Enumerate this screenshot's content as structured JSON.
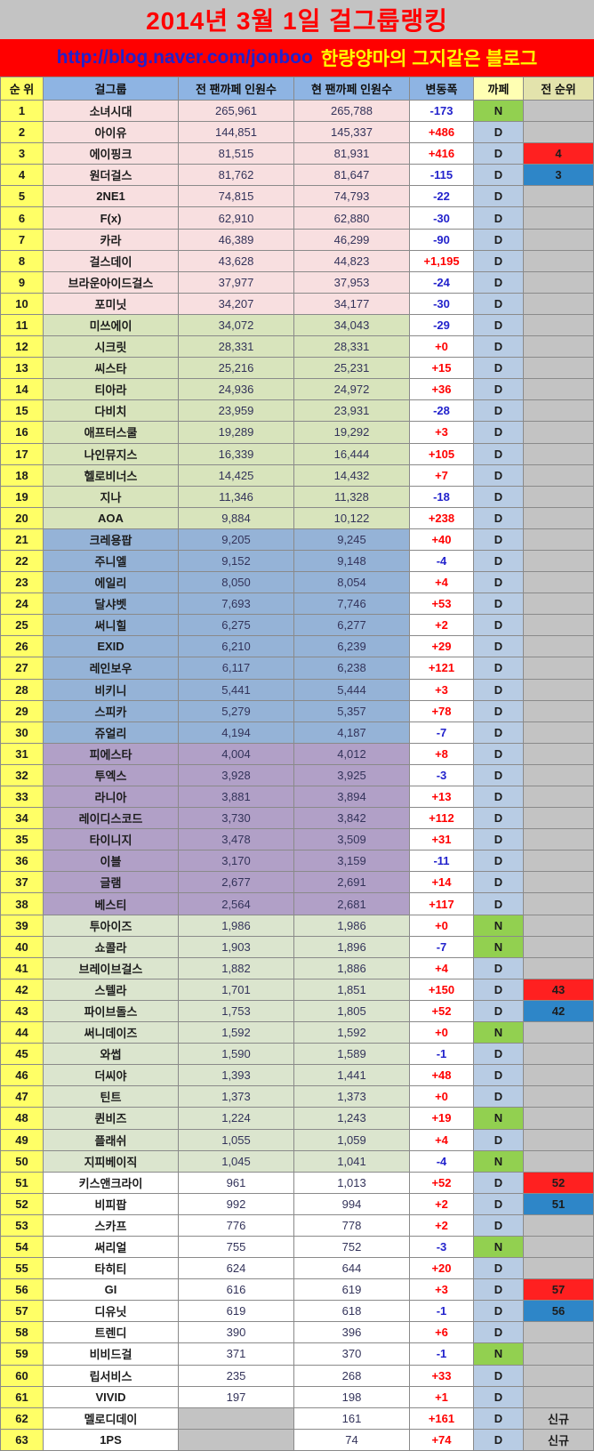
{
  "url_bar": {
    "url": "http://blog.naver.com/jonboo",
    "blog_name": "한량양마의 그지같은 블로그"
  },
  "chart_data": {
    "type": "table",
    "title": "2014년 3월 1일 걸그룹랭킹",
    "columns": [
      "순 위",
      "걸그룹",
      "전 팬까페 인원수",
      "현 팬까페 인원수",
      "변동폭",
      "까페",
      "전 순위"
    ],
    "row_fields": [
      "rank",
      "group",
      "prev_count",
      "curr_count",
      "change",
      "cafe",
      "prev_rank",
      "band",
      "prev_rank_style"
    ],
    "rows": [
      [
        "1",
        "소녀시대",
        "265,961",
        "265,788",
        "-173",
        "N",
        "",
        "pink",
        ""
      ],
      [
        "2",
        "아이유",
        "144,851",
        "145,337",
        "+486",
        "D",
        "",
        "pink",
        ""
      ],
      [
        "3",
        "에이핑크",
        "81,515",
        "81,931",
        "+416",
        "D",
        "4",
        "pink",
        "red"
      ],
      [
        "4",
        "원더걸스",
        "81,762",
        "81,647",
        "-115",
        "D",
        "3",
        "pink",
        "blue"
      ],
      [
        "5",
        "2NE1",
        "74,815",
        "74,793",
        "-22",
        "D",
        "",
        "pink",
        ""
      ],
      [
        "6",
        "F(x)",
        "62,910",
        "62,880",
        "-30",
        "D",
        "",
        "pink",
        ""
      ],
      [
        "7",
        "카라",
        "46,389",
        "46,299",
        "-90",
        "D",
        "",
        "pink",
        ""
      ],
      [
        "8",
        "걸스데이",
        "43,628",
        "44,823",
        "+1,195",
        "D",
        "",
        "pink",
        ""
      ],
      [
        "9",
        "브라운아이드걸스",
        "37,977",
        "37,953",
        "-24",
        "D",
        "",
        "pink",
        ""
      ],
      [
        "10",
        "포미닛",
        "34,207",
        "34,177",
        "-30",
        "D",
        "",
        "pink",
        ""
      ],
      [
        "11",
        "미쓰에이",
        "34,072",
        "34,043",
        "-29",
        "D",
        "",
        "green",
        ""
      ],
      [
        "12",
        "시크릿",
        "28,331",
        "28,331",
        "+0",
        "D",
        "",
        "green",
        ""
      ],
      [
        "13",
        "씨스타",
        "25,216",
        "25,231",
        "+15",
        "D",
        "",
        "green",
        ""
      ],
      [
        "14",
        "티아라",
        "24,936",
        "24,972",
        "+36",
        "D",
        "",
        "green",
        ""
      ],
      [
        "15",
        "다비치",
        "23,959",
        "23,931",
        "-28",
        "D",
        "",
        "green",
        ""
      ],
      [
        "16",
        "애프터스쿨",
        "19,289",
        "19,292",
        "+3",
        "D",
        "",
        "green",
        ""
      ],
      [
        "17",
        "나인뮤지스",
        "16,339",
        "16,444",
        "+105",
        "D",
        "",
        "green",
        ""
      ],
      [
        "18",
        "헬로비너스",
        "14,425",
        "14,432",
        "+7",
        "D",
        "",
        "green",
        ""
      ],
      [
        "19",
        "지나",
        "11,346",
        "11,328",
        "-18",
        "D",
        "",
        "green",
        ""
      ],
      [
        "20",
        "AOA",
        "9,884",
        "10,122",
        "+238",
        "D",
        "",
        "green",
        ""
      ],
      [
        "21",
        "크레용팝",
        "9,205",
        "9,245",
        "+40",
        "D",
        "",
        "blue",
        ""
      ],
      [
        "22",
        "주니엘",
        "9,152",
        "9,148",
        "-4",
        "D",
        "",
        "blue",
        ""
      ],
      [
        "23",
        "에일리",
        "8,050",
        "8,054",
        "+4",
        "D",
        "",
        "blue",
        ""
      ],
      [
        "24",
        "달샤벳",
        "7,693",
        "7,746",
        "+53",
        "D",
        "",
        "blue",
        ""
      ],
      [
        "25",
        "써니힐",
        "6,275",
        "6,277",
        "+2",
        "D",
        "",
        "blue",
        ""
      ],
      [
        "26",
        "EXID",
        "6,210",
        "6,239",
        "+29",
        "D",
        "",
        "blue",
        ""
      ],
      [
        "27",
        "레인보우",
        "6,117",
        "6,238",
        "+121",
        "D",
        "",
        "blue",
        ""
      ],
      [
        "28",
        "비키니",
        "5,441",
        "5,444",
        "+3",
        "D",
        "",
        "blue",
        ""
      ],
      [
        "29",
        "스피카",
        "5,279",
        "5,357",
        "+78",
        "D",
        "",
        "blue",
        ""
      ],
      [
        "30",
        "쥬얼리",
        "4,194",
        "4,187",
        "-7",
        "D",
        "",
        "blue",
        ""
      ],
      [
        "31",
        "피에스타",
        "4,004",
        "4,012",
        "+8",
        "D",
        "",
        "purple",
        ""
      ],
      [
        "32",
        "투엑스",
        "3,928",
        "3,925",
        "-3",
        "D",
        "",
        "purple",
        ""
      ],
      [
        "33",
        "라니아",
        "3,881",
        "3,894",
        "+13",
        "D",
        "",
        "purple",
        ""
      ],
      [
        "34",
        "레이디스코드",
        "3,730",
        "3,842",
        "+112",
        "D",
        "",
        "purple",
        ""
      ],
      [
        "35",
        "타이니지",
        "3,478",
        "3,509",
        "+31",
        "D",
        "",
        "purple",
        ""
      ],
      [
        "36",
        "이블",
        "3,170",
        "3,159",
        "-11",
        "D",
        "",
        "purple",
        ""
      ],
      [
        "37",
        "글램",
        "2,677",
        "2,691",
        "+14",
        "D",
        "",
        "purple",
        ""
      ],
      [
        "38",
        "베스티",
        "2,564",
        "2,681",
        "+117",
        "D",
        "",
        "purple",
        ""
      ],
      [
        "39",
        "투아이즈",
        "1,986",
        "1,986",
        "+0",
        "N",
        "",
        "sage",
        ""
      ],
      [
        "40",
        "쇼콜라",
        "1,903",
        "1,896",
        "-7",
        "N",
        "",
        "sage",
        ""
      ],
      [
        "41",
        "브레이브걸스",
        "1,882",
        "1,886",
        "+4",
        "D",
        "",
        "sage",
        ""
      ],
      [
        "42",
        "스텔라",
        "1,701",
        "1,851",
        "+150",
        "D",
        "43",
        "sage",
        "red"
      ],
      [
        "43",
        "파이브돌스",
        "1,753",
        "1,805",
        "+52",
        "D",
        "42",
        "sage",
        "blue"
      ],
      [
        "44",
        "써니데이즈",
        "1,592",
        "1,592",
        "+0",
        "N",
        "",
        "sage",
        ""
      ],
      [
        "45",
        "와썹",
        "1,590",
        "1,589",
        "-1",
        "D",
        "",
        "sage",
        ""
      ],
      [
        "46",
        "더씨야",
        "1,393",
        "1,441",
        "+48",
        "D",
        "",
        "sage",
        ""
      ],
      [
        "47",
        "틴트",
        "1,373",
        "1,373",
        "+0",
        "D",
        "",
        "sage",
        ""
      ],
      [
        "48",
        "퀸비즈",
        "1,224",
        "1,243",
        "+19",
        "N",
        "",
        "sage",
        ""
      ],
      [
        "49",
        "플래쉬",
        "1,055",
        "1,059",
        "+4",
        "D",
        "",
        "sage",
        ""
      ],
      [
        "50",
        "지피베이직",
        "1,045",
        "1,041",
        "-4",
        "N",
        "",
        "sage",
        ""
      ],
      [
        "51",
        "키스앤크라이",
        "961",
        "1,013",
        "+52",
        "D",
        "52",
        "white",
        "red"
      ],
      [
        "52",
        "비피팝",
        "992",
        "994",
        "+2",
        "D",
        "51",
        "white",
        "blue"
      ],
      [
        "53",
        "스카프",
        "776",
        "778",
        "+2",
        "D",
        "",
        "white",
        ""
      ],
      [
        "54",
        "써리얼",
        "755",
        "752",
        "-3",
        "N",
        "",
        "white",
        ""
      ],
      [
        "55",
        "타히티",
        "624",
        "644",
        "+20",
        "D",
        "",
        "white",
        ""
      ],
      [
        "56",
        "GI",
        "616",
        "619",
        "+3",
        "D",
        "57",
        "white",
        "red"
      ],
      [
        "57",
        "디유닛",
        "619",
        "618",
        "-1",
        "D",
        "56",
        "white",
        "blue"
      ],
      [
        "58",
        "트렌디",
        "390",
        "396",
        "+6",
        "D",
        "",
        "white",
        ""
      ],
      [
        "59",
        "비비드걸",
        "371",
        "370",
        "-1",
        "N",
        "",
        "white",
        ""
      ],
      [
        "60",
        "립서비스",
        "235",
        "268",
        "+33",
        "D",
        "",
        "white",
        ""
      ],
      [
        "61",
        "VIVID",
        "197",
        "198",
        "+1",
        "D",
        "",
        "white",
        ""
      ],
      [
        "62",
        "멜로디데이",
        "",
        "161",
        "+161",
        "D",
        "신규",
        "white",
        "new"
      ],
      [
        "63",
        "1PS",
        "",
        "74",
        "+74",
        "D",
        "신규",
        "white",
        "new"
      ]
    ]
  },
  "colors": {
    "page_bg": "#C3C3C3",
    "title_text": "#FF0000",
    "url_bar_bg": "#FF0000",
    "url_text_blue": "#2222CC",
    "url_text_yellow": "#FFFF00",
    "header_yellow": "#FFFF66",
    "header_blue": "#8EB4E3",
    "header_paleyellow": "#FFFFB3",
    "header_tan": "#E3E3AC",
    "rank_col": "#FFFF66",
    "band_pink": "#F8DFE0",
    "band_green": "#D8E4BC",
    "band_blue": "#95B3D7",
    "band_purple": "#B1A0C7",
    "band_sage": "#DBE5CE",
    "band_white": "#FFFFFF",
    "cafe_d": "#B8CCE4",
    "cafe_n": "#92D050",
    "change_up": "#FF0000",
    "change_down": "#2222CC",
    "prevrank_red": "#FF2020",
    "prevrank_blue": "#2E86C8",
    "number_text": "#33335a"
  }
}
